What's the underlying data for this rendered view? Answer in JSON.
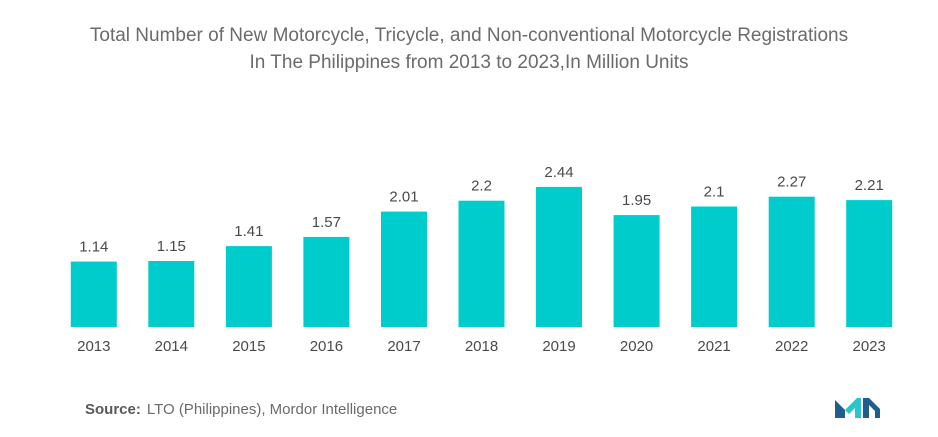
{
  "header": {
    "title_line1": "Total Number of New Motorcycle, Tricycle, and Non-conventional Motorcycle Registrations",
    "title_line2": "In The Philippines from 2013 to 2023,In Million Units"
  },
  "footer": {
    "source_label": "Source:",
    "source_text": "LTO (Philippines), Mordor Intelligence"
  },
  "colors": {
    "bar": "#00cccc",
    "text": "#4a4a4a",
    "logo_dark": "#1f5f8b",
    "logo_light": "#2bc4cf"
  },
  "chart_data": {
    "type": "bar",
    "title": "Total Number of New Motorcycle, Tricycle, and Non-conventional Motorcycle Registrations In The Philippines from 2013 to 2023,In Million Units",
    "categories": [
      "2013",
      "2014",
      "2015",
      "2016",
      "2017",
      "2018",
      "2019",
      "2020",
      "2021",
      "2022",
      "2023"
    ],
    "values": [
      1.14,
      1.15,
      1.41,
      1.57,
      2.01,
      2.2,
      2.44,
      1.95,
      2.1,
      2.27,
      2.21
    ],
    "value_labels": [
      "1.14",
      "1.15",
      "1.41",
      "1.57",
      "2.01",
      "2.2",
      "2.44",
      "1.95",
      "2.1",
      "2.27",
      "2.21"
    ],
    "xlabel": "",
    "ylabel": "",
    "ylim": [
      0,
      3.1
    ],
    "grid": false,
    "legend": "none"
  }
}
